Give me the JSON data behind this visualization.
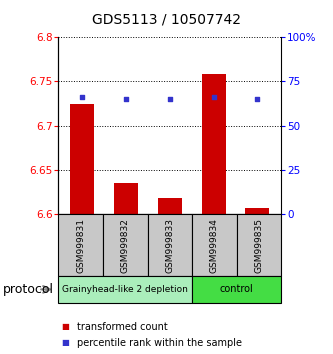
{
  "title": "GDS5113 / 10507742",
  "samples": [
    "GSM999831",
    "GSM999832",
    "GSM999833",
    "GSM999834",
    "GSM999835"
  ],
  "transformed_count": [
    6.725,
    6.635,
    6.618,
    6.758,
    6.607
  ],
  "percentile_rank": [
    66.0,
    65.0,
    65.0,
    66.0,
    65.0
  ],
  "ylim_left": [
    6.6,
    6.8
  ],
  "ylim_right": [
    0,
    100
  ],
  "yticks_left": [
    6.6,
    6.65,
    6.7,
    6.75,
    6.8
  ],
  "yticks_right": [
    0,
    25,
    50,
    75,
    100
  ],
  "ytick_labels_right": [
    "0",
    "25",
    "50",
    "75",
    "100%"
  ],
  "bar_color": "#cc0000",
  "dot_color": "#3333cc",
  "bar_bottom": 6.6,
  "groups": [
    {
      "label": "Grainyhead-like 2 depletion",
      "n_samples": 3,
      "color": "#aaeebb"
    },
    {
      "label": "control",
      "n_samples": 2,
      "color": "#44dd44"
    }
  ],
  "protocol_label": "protocol",
  "legend_bar_label": "transformed count",
  "legend_dot_label": "percentile rank within the sample",
  "bar_width": 0.55,
  "title_fontsize": 10,
  "axis_tick_fontsize": 7.5,
  "sample_label_fontsize": 6.5,
  "group_label_fontsize": 7,
  "legend_fontsize": 7,
  "protocol_fontsize": 9
}
